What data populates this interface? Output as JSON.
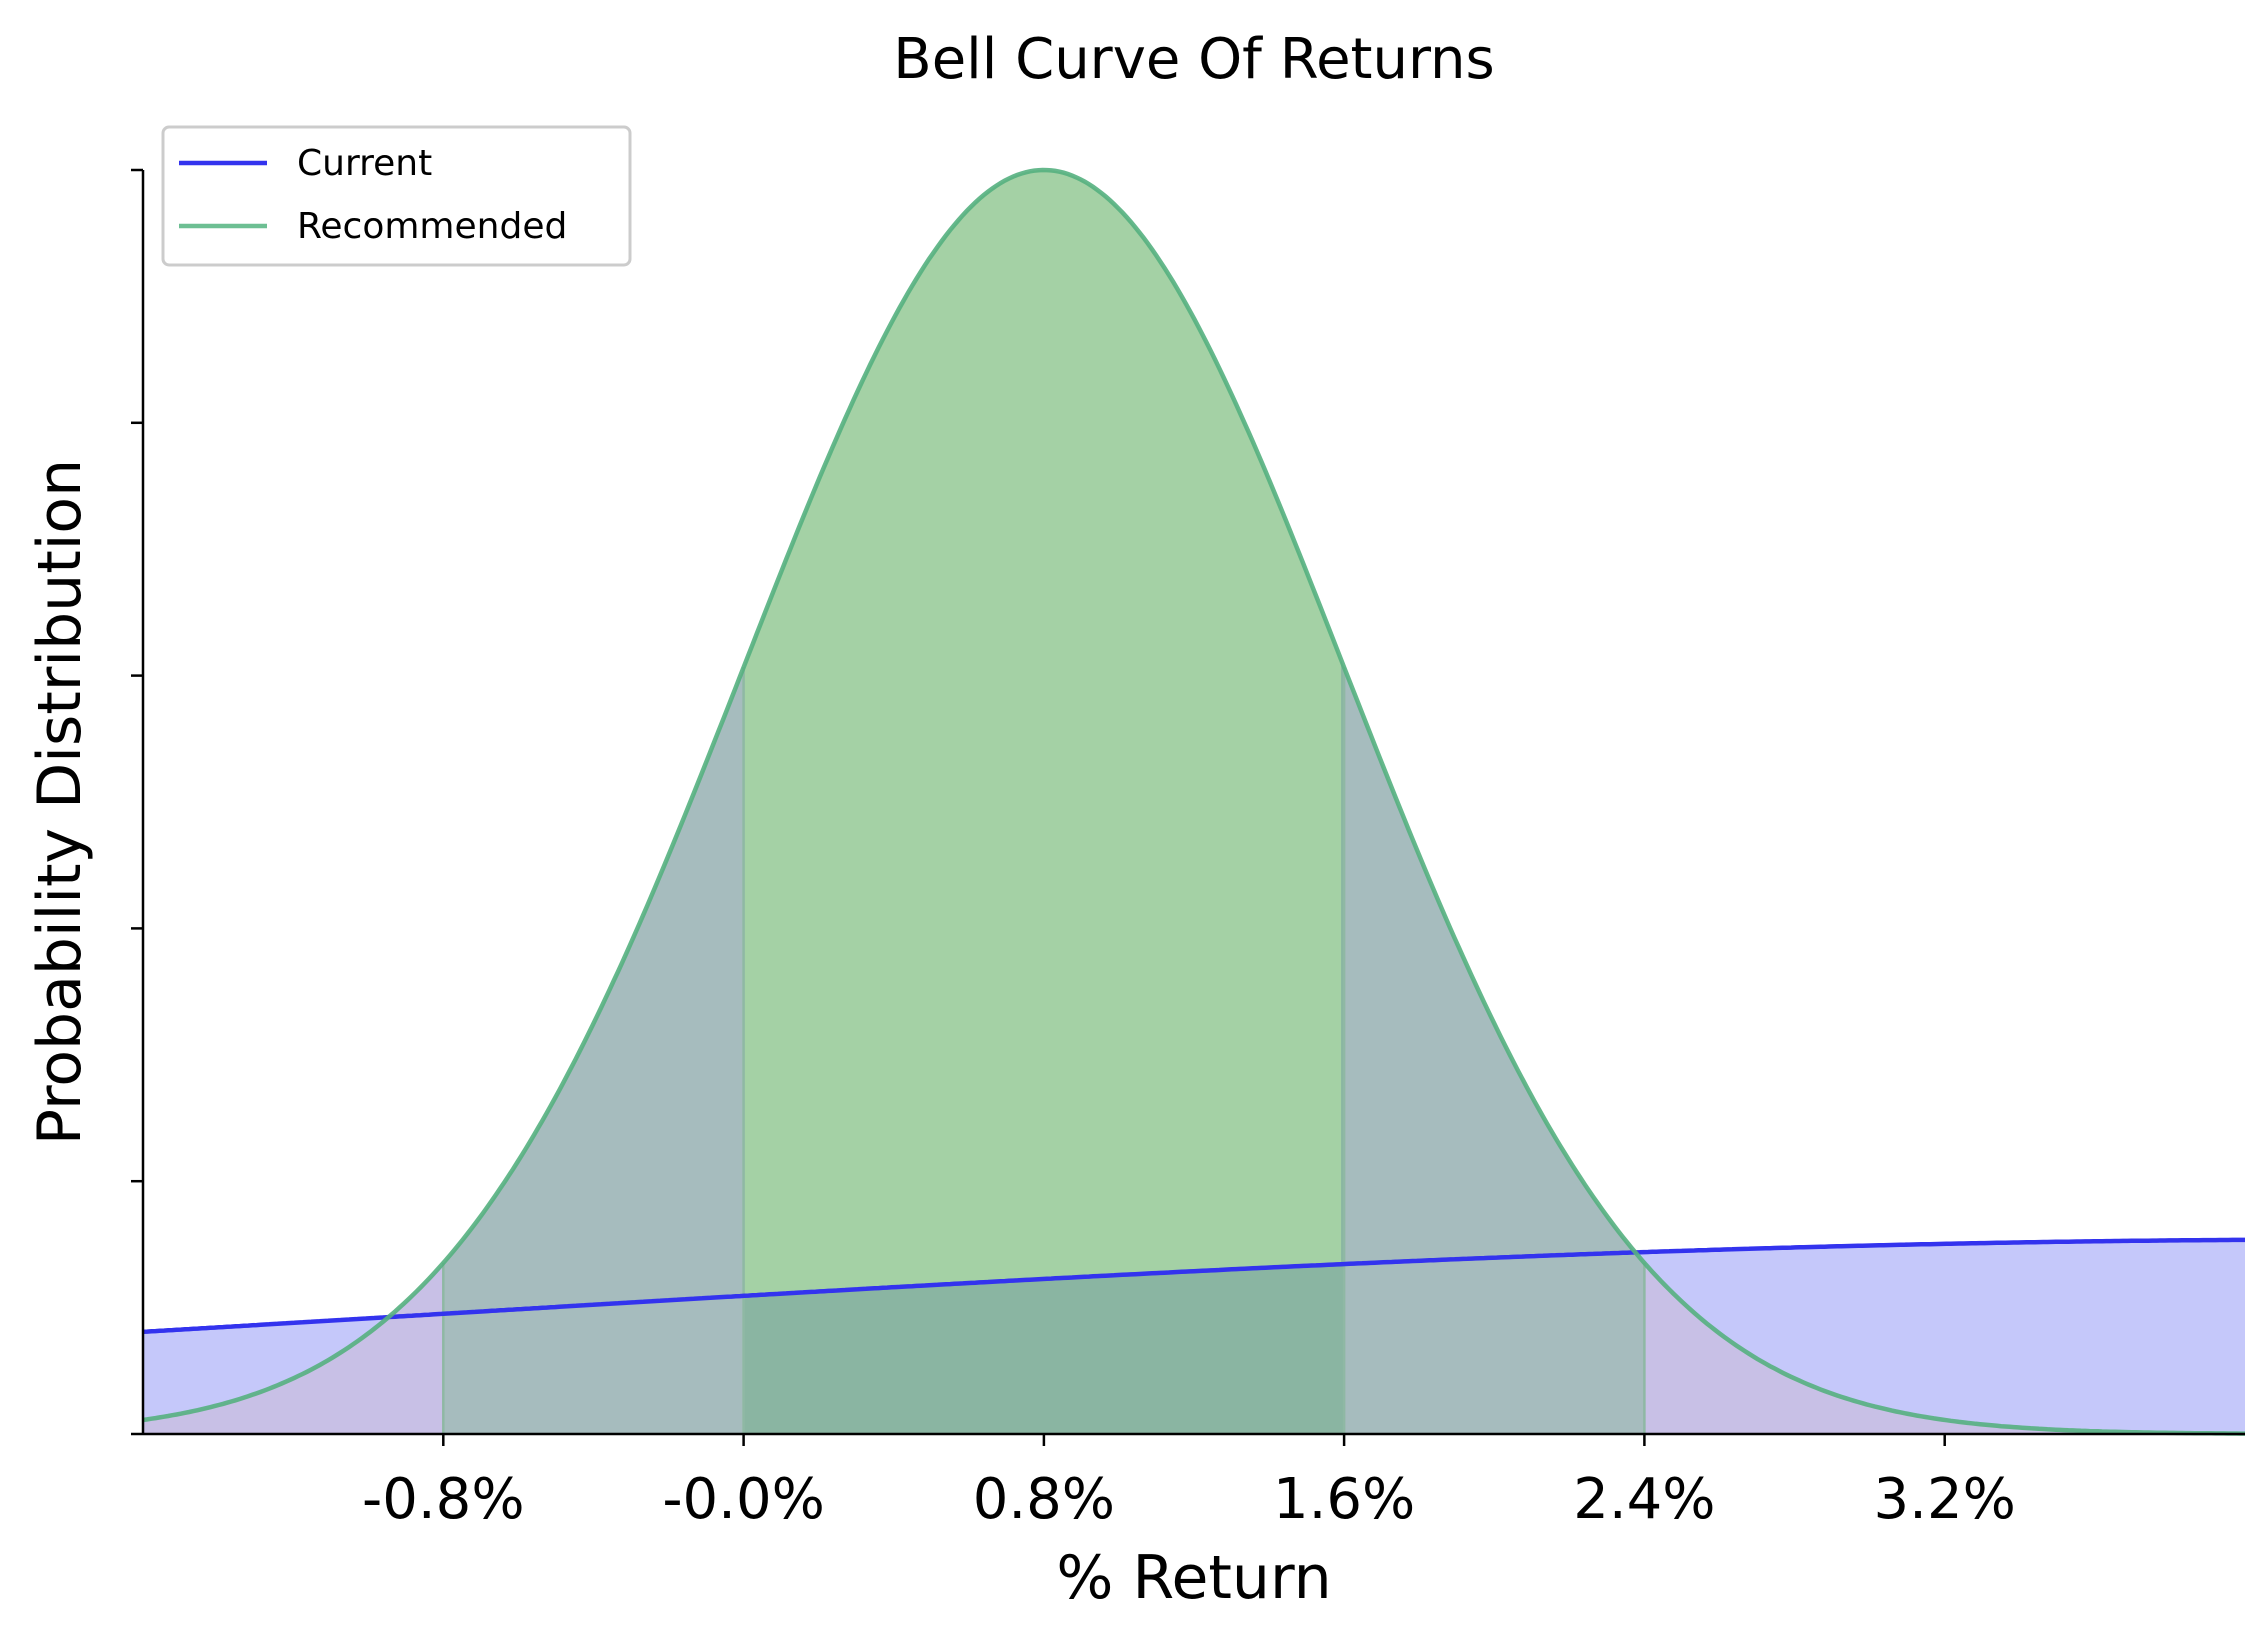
{
  "chart_data": {
    "type": "area",
    "title": "Bell Curve Of Returns",
    "xlabel": "% Return",
    "ylabel": "Probability Distribution",
    "xlim": [
      -1.6,
      4.0
    ],
    "x_ticks": [
      -0.8,
      0.0,
      0.8,
      1.6,
      2.4,
      3.2
    ],
    "x_tick_labels": [
      "-0.8%",
      "-0.0%",
      "0.8%",
      "1.6%",
      "2.4%",
      "3.2%"
    ],
    "y_tick_count": 6,
    "y_tick_labels_visible": false,
    "grid": false,
    "legend_position": "top-left",
    "series": [
      {
        "name": "Current",
        "distribution": "normal",
        "mean": 4.3,
        "std": 5.2,
        "color": "#3333ee",
        "fill_color": "#c5c8fa"
      },
      {
        "name": "Recommended",
        "distribution": "normal",
        "mean": 0.8,
        "std": 0.8,
        "color": "#55b07f",
        "shaded_bands_std": [
          1,
          2
        ],
        "band_colors": {
          "within_1_std": "#8ab5a2",
          "within_2_std": "#a6bcbe",
          "tails": "#c8c0e6",
          "peak": "#a4d1a5"
        }
      }
    ]
  }
}
